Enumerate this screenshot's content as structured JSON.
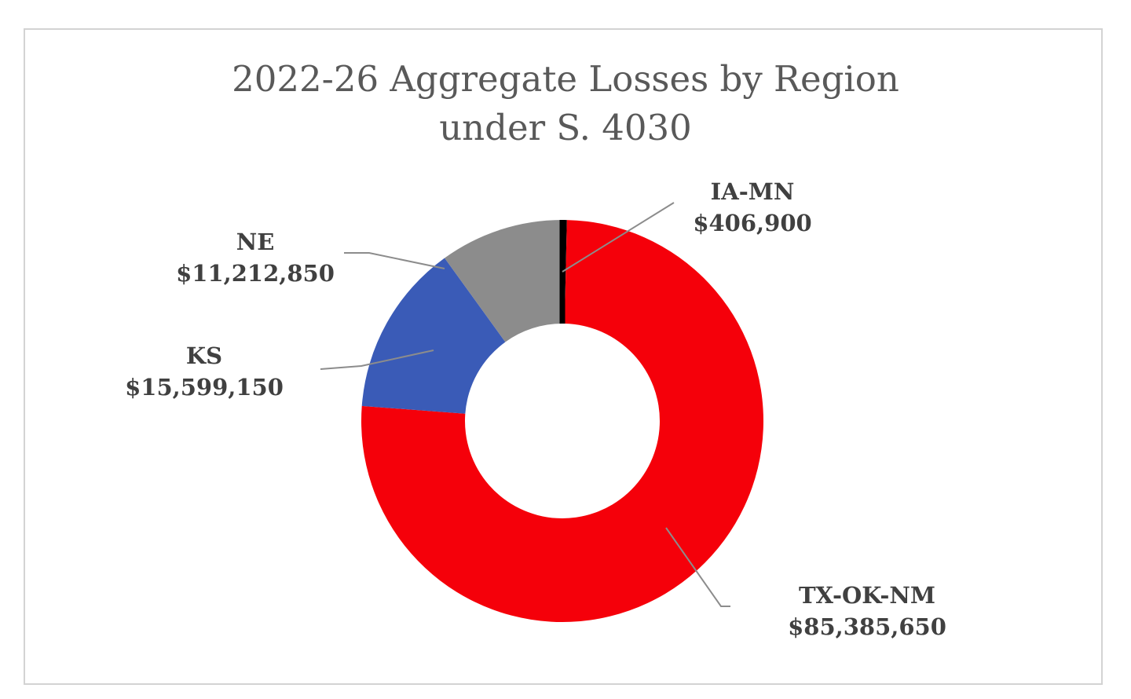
{
  "chart_data": {
    "type": "pie",
    "variant": "donut",
    "title": [
      "2022-26 Aggregate Losses by Region",
      "under S. 4030"
    ],
    "legend": "none",
    "slices": [
      {
        "label": "IA-MN",
        "value": 406900,
        "display": "$406,900",
        "color": "#000000"
      },
      {
        "label": "TX-OK-NM",
        "value": 85385650,
        "display": "$85,385,650",
        "color": "#f5000a"
      },
      {
        "label": "KS",
        "value": 15599150,
        "display": "$15,599,150",
        "color": "#3a5bb7"
      },
      {
        "label": "NE",
        "value": 11212850,
        "display": "$11,212,850",
        "color": "#8c8c8c"
      }
    ]
  }
}
